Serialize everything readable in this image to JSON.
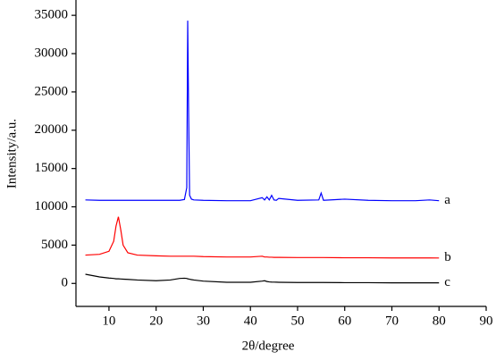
{
  "chart_data": {
    "type": "line",
    "xlabel": "2θ/degree",
    "ylabel": "Intensity/a.u.",
    "x": [
      5,
      8,
      10,
      11,
      11.5,
      12,
      12.5,
      13,
      14,
      16,
      20,
      23,
      25,
      26,
      26.5,
      26.7,
      26.9,
      27.1,
      27.5,
      28,
      30,
      35,
      40,
      42.5,
      43,
      43.5,
      44,
      44.5,
      45,
      45.5,
      46,
      50,
      54.5,
      55,
      55.5,
      60,
      65,
      70,
      75,
      78,
      80
    ],
    "series": [
      {
        "name": "a",
        "color": "#0000ff",
        "values": [
          10900,
          10850,
          10850,
          10850,
          10850,
          10850,
          10850,
          10850,
          10850,
          10850,
          10850,
          10850,
          10850,
          10950,
          12500,
          34300,
          22000,
          11500,
          11000,
          10900,
          10850,
          10800,
          10800,
          11200,
          10900,
          11300,
          10900,
          11500,
          10900,
          10850,
          11100,
          10850,
          10900,
          11800,
          10850,
          11000,
          10850,
          10800,
          10800,
          10900,
          10800
        ]
      },
      {
        "name": "b",
        "color": "#ff0000",
        "values": [
          3700,
          3800,
          4200,
          5500,
          7500,
          8700,
          7000,
          5000,
          4000,
          3700,
          3600,
          3550,
          3550,
          3550,
          3550,
          3550,
          3550,
          3550,
          3550,
          3550,
          3500,
          3450,
          3450,
          3550,
          3450,
          3450,
          3420,
          3420,
          3400,
          3400,
          3400,
          3380,
          3380,
          3380,
          3380,
          3350,
          3350,
          3330,
          3330,
          3330,
          3320
        ]
      },
      {
        "name": "c",
        "color": "#000000",
        "values": [
          1200,
          850,
          700,
          650,
          600,
          600,
          580,
          560,
          530,
          450,
          350,
          450,
          650,
          680,
          650,
          600,
          580,
          550,
          500,
          450,
          300,
          150,
          150,
          300,
          350,
          250,
          200,
          180,
          170,
          160,
          150,
          120,
          120,
          120,
          120,
          100,
          100,
          80,
          80,
          80,
          80
        ]
      }
    ],
    "xlim": [
      3,
      90
    ],
    "ylim": [
      -3000,
      37000
    ],
    "xticks": [
      10,
      20,
      30,
      40,
      50,
      60,
      70,
      80,
      90
    ],
    "yticks": [
      0,
      5000,
      10000,
      15000,
      20000,
      25000,
      30000,
      35000
    ]
  }
}
